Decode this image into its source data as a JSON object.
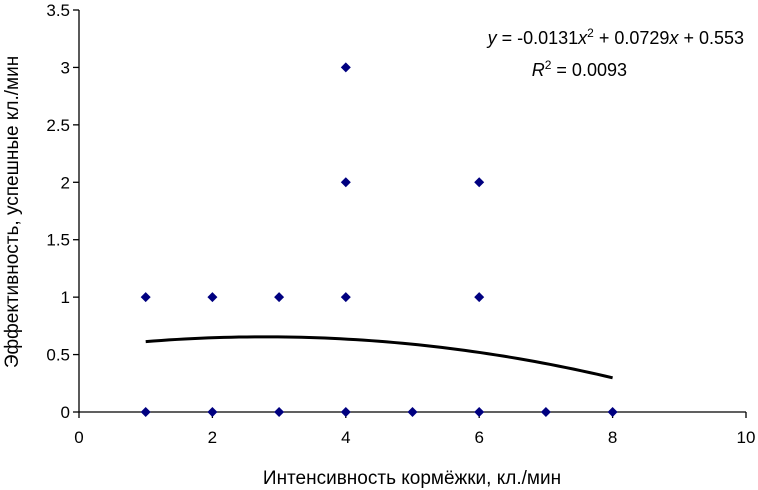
{
  "chart_data": {
    "type": "scatter",
    "title": "",
    "xlabel": "Интенсивность кормёжки, кл./мин",
    "ylabel": "Эффективность, успешные кл./мин",
    "xlim": [
      0,
      10
    ],
    "ylim": [
      0,
      3.5
    ],
    "x_ticks": [
      "0",
      "2",
      "4",
      "6",
      "8",
      "10"
    ],
    "y_ticks": [
      "0",
      "0.5",
      "1",
      "1.5",
      "2",
      "2.5",
      "3",
      "3.5"
    ],
    "grid": false,
    "legend": "none",
    "marker": "diamond",
    "marker_color": "#000080",
    "points": [
      {
        "x": 1,
        "y": 1
      },
      {
        "x": 1,
        "y": 0
      },
      {
        "x": 2,
        "y": 1
      },
      {
        "x": 2,
        "y": 0
      },
      {
        "x": 3,
        "y": 1
      },
      {
        "x": 3,
        "y": 0
      },
      {
        "x": 4,
        "y": 3
      },
      {
        "x": 4,
        "y": 2
      },
      {
        "x": 4,
        "y": 1
      },
      {
        "x": 4,
        "y": 0
      },
      {
        "x": 5,
        "y": 0
      },
      {
        "x": 6,
        "y": 2
      },
      {
        "x": 6,
        "y": 1
      },
      {
        "x": 6,
        "y": 0
      },
      {
        "x": 7,
        "y": 0
      },
      {
        "x": 8,
        "y": 0
      }
    ],
    "trendline": {
      "type": "polynomial",
      "coefficients": [
        -0.0131,
        0.0729,
        0.553
      ],
      "x_range": [
        1,
        8
      ],
      "color": "#000000"
    },
    "annotations": {
      "equation": {
        "y": "y",
        "eq": " = -0.0131",
        "x1": "x",
        "sup": "2",
        "mid": " + 0.0729",
        "x2": "x",
        "tail": " + 0.553"
      },
      "r_squared": {
        "r": "R",
        "sup": "2",
        "val": " = 0.0093"
      }
    }
  }
}
